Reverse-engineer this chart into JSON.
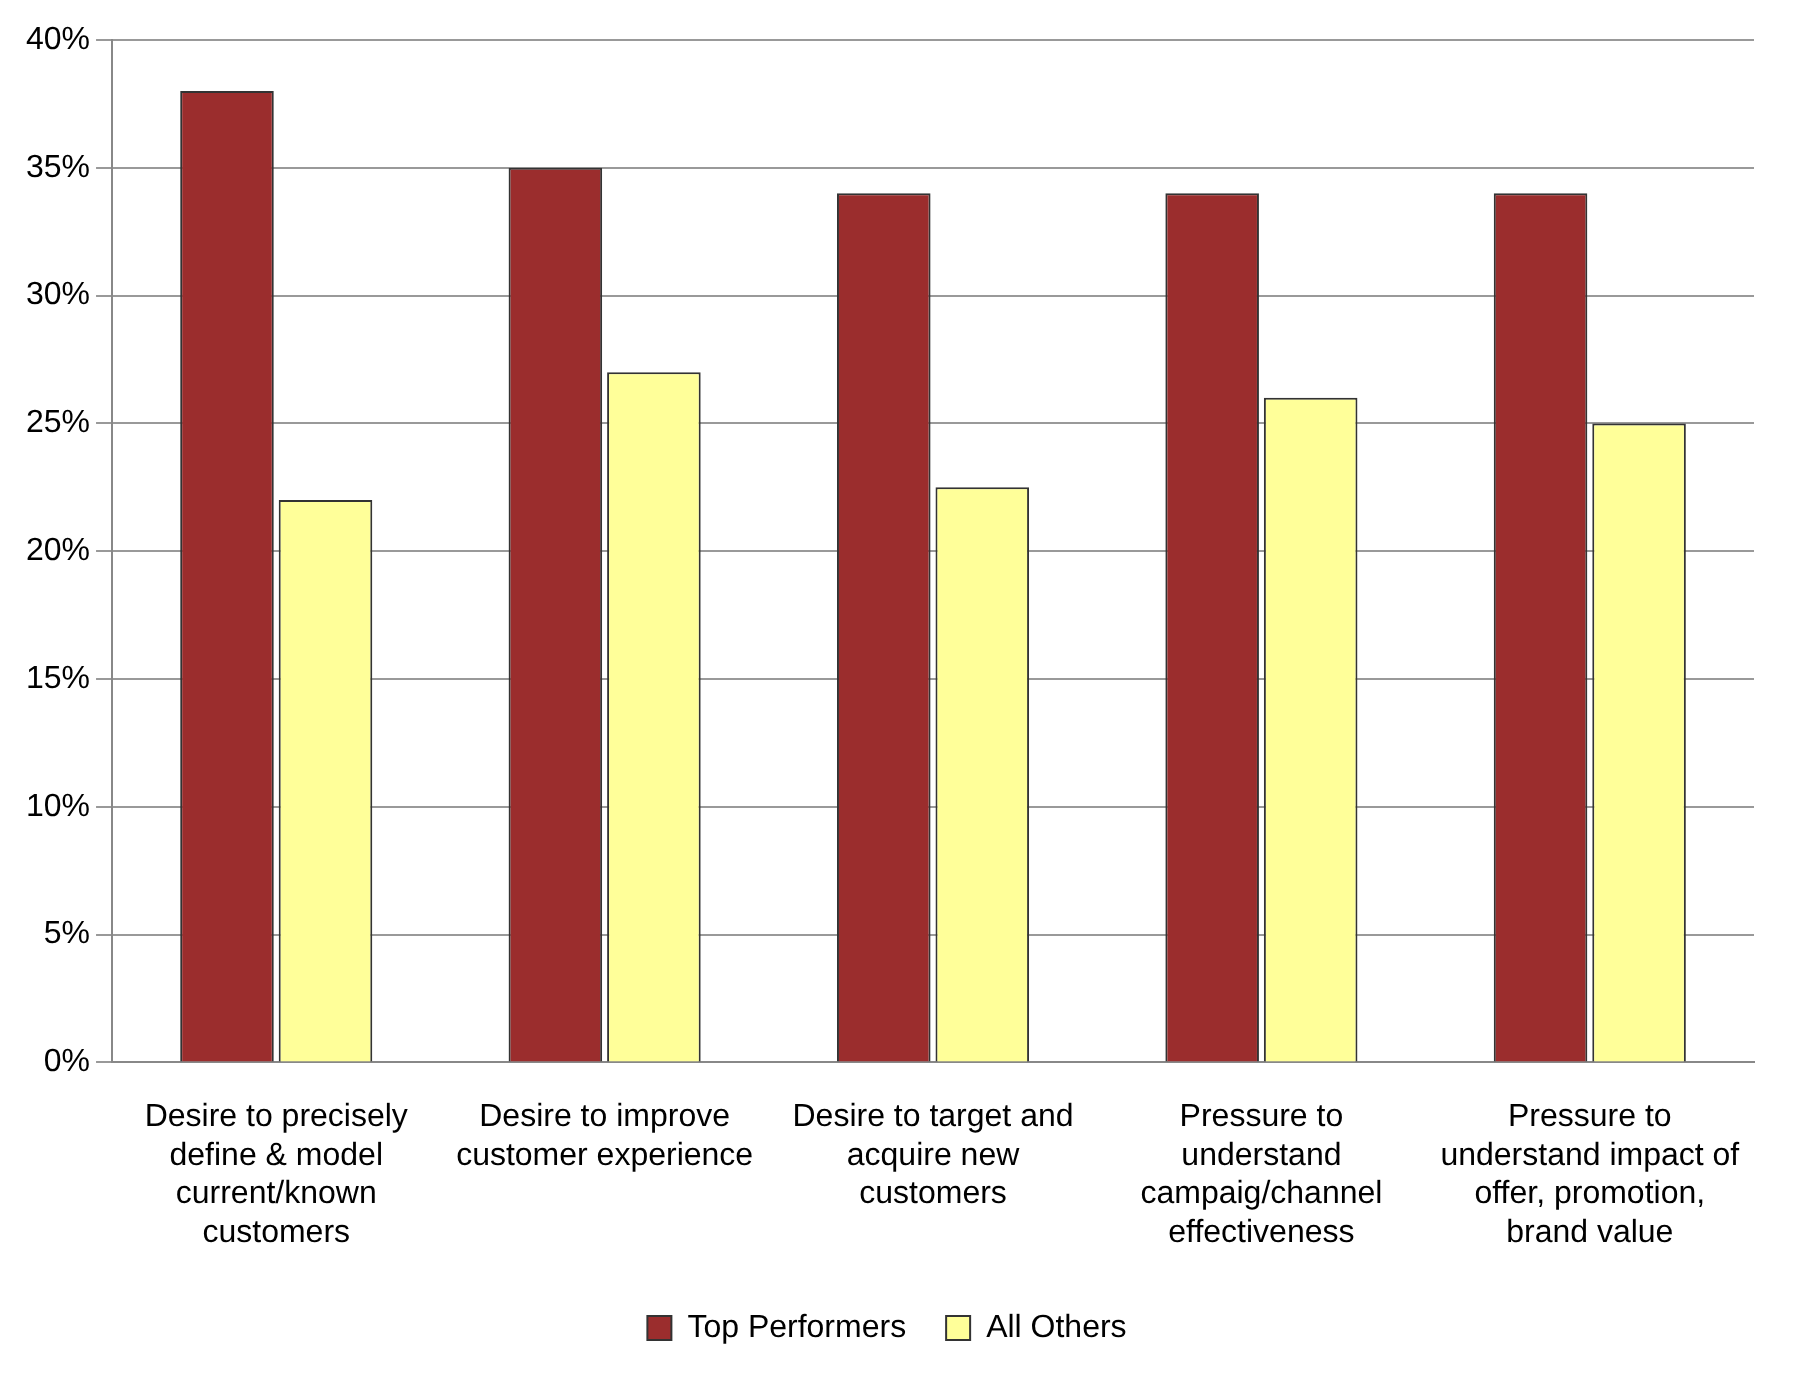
{
  "chart_data": {
    "type": "bar",
    "categories": [
      "Desire to precisely define & model current/known customers",
      "Desire to improve customer experience",
      "Desire to target and acquire new customers",
      "Pressure to understand campaig/channel effectiveness",
      "Pressure to understand impact of offer, promotion, brand value"
    ],
    "series": [
      {
        "name": "Top Performers",
        "color": "#9b2d2d",
        "values": [
          38,
          35,
          34,
          34,
          34
        ]
      },
      {
        "name": "All Others",
        "color": "#ffff99",
        "values": [
          22,
          27,
          22.5,
          26,
          25
        ]
      }
    ],
    "ylim": [
      0,
      40
    ],
    "yticks": [
      {
        "value": 0,
        "label": "0%"
      },
      {
        "value": 5,
        "label": "5%"
      },
      {
        "value": 10,
        "label": "10%"
      },
      {
        "value": 15,
        "label": "15%"
      },
      {
        "value": 20,
        "label": "20%"
      },
      {
        "value": 25,
        "label": "25%"
      },
      {
        "value": 30,
        "label": "30%"
      },
      {
        "value": 35,
        "label": "35%"
      },
      {
        "value": 40,
        "label": "40%"
      }
    ],
    "grid": "y",
    "legend": "bottom"
  }
}
